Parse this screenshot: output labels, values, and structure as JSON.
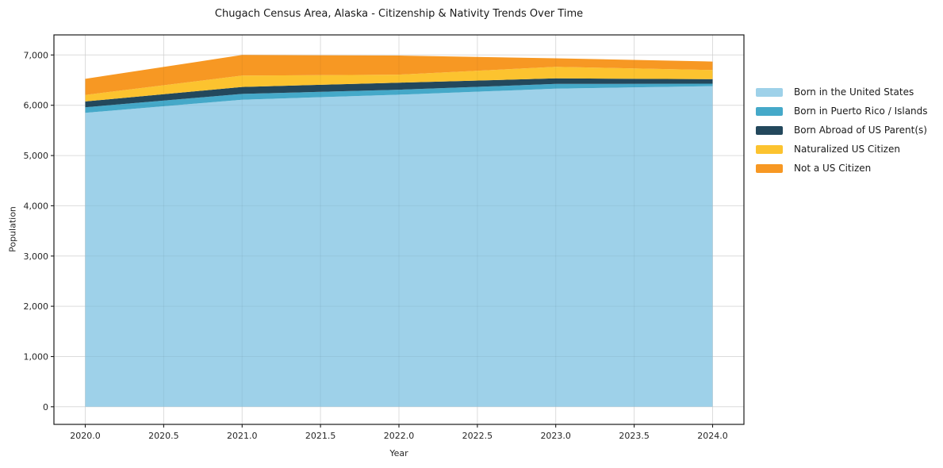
{
  "chart_data": {
    "type": "area",
    "stacked": true,
    "title": "Chugach Census Area, Alaska - Citizenship & Nativity Trends Over Time",
    "xlabel": "Year",
    "ylabel": "Population",
    "x": [
      2020,
      2021,
      2022,
      2023,
      2024
    ],
    "series": [
      {
        "name": "Born in the United States",
        "color": "#9ed1e9",
        "values": [
          5850,
          6110,
          6210,
          6330,
          6380
        ]
      },
      {
        "name": "Born in Puerto Rico / Islands",
        "color": "#45a9c9",
        "values": [
          110,
          115,
          100,
          95,
          50
        ]
      },
      {
        "name": "Born Abroad of US Parent(s)",
        "color": "#23485c",
        "values": [
          115,
          140,
          140,
          110,
          90
        ]
      },
      {
        "name": "Naturalized US Citizen",
        "color": "#fcc32f",
        "values": [
          130,
          225,
          160,
          230,
          180
        ]
      },
      {
        "name": "Not a US Citizen",
        "color": "#f79823",
        "values": [
          320,
          410,
          380,
          170,
          170
        ]
      }
    ],
    "stacked_totals": [
      6525,
      7000,
      6990,
      6935,
      6870
    ],
    "xlim": [
      2019.8,
      2024.2
    ],
    "ylim": [
      -350,
      7400
    ],
    "xticks": [
      2020.0,
      2020.5,
      2021.0,
      2021.5,
      2022.0,
      2022.5,
      2023.0,
      2023.5,
      2024.0
    ],
    "xtick_labels": [
      "2020.0",
      "2020.5",
      "2021.0",
      "2021.5",
      "2022.0",
      "2022.5",
      "2023.0",
      "2023.5",
      "2024.0"
    ],
    "yticks": [
      0,
      1000,
      2000,
      3000,
      4000,
      5000,
      6000,
      7000
    ],
    "ytick_labels": [
      "0",
      "1,000",
      "2,000",
      "3,000",
      "4,000",
      "5,000",
      "6,000",
      "7,000"
    ],
    "grid": true,
    "legend_position": "right-outside",
    "colors": {
      "grid": "#e8e8e8",
      "grid_overlay": "rgba(0,0,0,0.05)",
      "spine": "#1a1a1a",
      "tick_text": "#262626",
      "background": "#ffffff"
    }
  }
}
